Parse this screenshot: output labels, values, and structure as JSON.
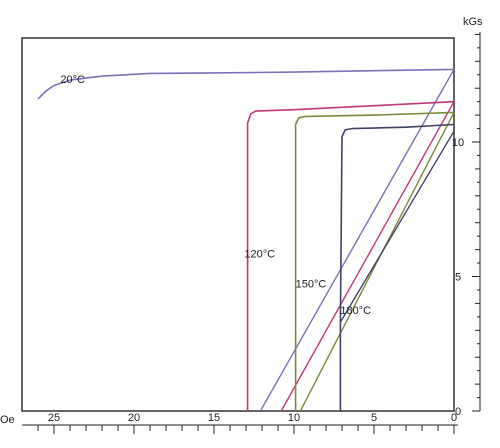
{
  "chart_data": {
    "type": "line",
    "title": "",
    "xlabel": "Oe",
    "ylabel": "kGs",
    "xlim": [
      27,
      0
    ],
    "ylim": [
      0,
      14
    ],
    "x_ticks": [
      25,
      20,
      15,
      10,
      5,
      0
    ],
    "y_ticks": [
      0,
      5,
      10
    ],
    "grid": false,
    "legend": "none",
    "series": [
      {
        "name": "20°C",
        "color": "#7a72b8",
        "points": [
          [
            26,
            11.6
          ],
          [
            25.5,
            11.9
          ],
          [
            25,
            12.1
          ],
          [
            24,
            12.3
          ],
          [
            22,
            12.45
          ],
          [
            19,
            12.55
          ],
          [
            15,
            12.57
          ],
          [
            10,
            12.6
          ],
          [
            5,
            12.65
          ],
          [
            0,
            12.7
          ]
        ],
        "recoil": [
          [
            12.1,
            0
          ],
          [
            0,
            12.7
          ]
        ]
      },
      {
        "name": "120°C",
        "color": "#c2377a",
        "points": [
          [
            12.9,
            0
          ],
          [
            12.9,
            10.7
          ],
          [
            12.7,
            11.05
          ],
          [
            12.4,
            11.15
          ],
          [
            10,
            11.2
          ],
          [
            5,
            11.35
          ],
          [
            0,
            11.5
          ]
        ],
        "recoil": [
          [
            10.8,
            0
          ],
          [
            0,
            11.5
          ]
        ]
      },
      {
        "name": "150°C",
        "color": "#7c8a3c",
        "points": [
          [
            9.9,
            0
          ],
          [
            9.9,
            10.65
          ],
          [
            9.7,
            10.9
          ],
          [
            9.3,
            10.95
          ],
          [
            5,
            11.0
          ],
          [
            0,
            11.1
          ]
        ],
        "recoil": [
          [
            9.6,
            0
          ],
          [
            0,
            11.1
          ]
        ]
      },
      {
        "name": "180°C",
        "color": "#3f4366",
        "points": [
          [
            7.1,
            0
          ],
          [
            7.1,
            3.3
          ],
          [
            7.0,
            10.2
          ],
          [
            6.8,
            10.45
          ],
          [
            6.4,
            10.5
          ],
          [
            3,
            10.55
          ],
          [
            0,
            10.65
          ]
        ],
        "recoil": [
          [
            7.1,
            3.3
          ],
          [
            0,
            10.4
          ]
        ]
      }
    ],
    "annotations": [
      {
        "text": "20°C",
        "x": 24.6,
        "y": 12.2
      },
      {
        "text": "120°C",
        "x": 13.1,
        "y": 5.7
      },
      {
        "text": "150°C",
        "x": 9.9,
        "y": 4.6
      },
      {
        "text": "180°C",
        "x": 7.1,
        "y": 3.6
      }
    ]
  }
}
